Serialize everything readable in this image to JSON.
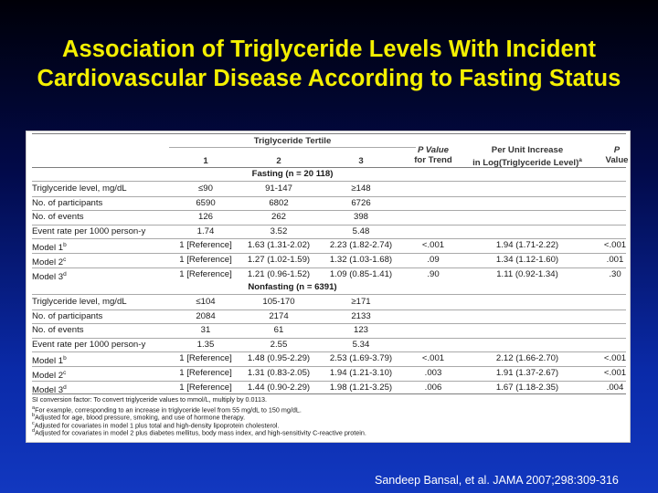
{
  "title": {
    "line1": "Association of Triglyceride Levels With Incident",
    "line2": "Cardiovascular Disease According to Fasting Status"
  },
  "table": {
    "tertile_header": "Triglyceride Tertile",
    "col_1": "1",
    "col_2": "2",
    "col_3": "3",
    "pvalue_trend_line1": "P Value",
    "pvalue_trend_line2": "for Trend",
    "per_unit_line1": "Per Unit Increase",
    "per_unit_line2": "in Log(Triglyceride Level)",
    "per_unit_sup": "a",
    "p_value_line1": "P",
    "p_value_line2": "Value",
    "fasting_section": "Fasting (n = 20 118)",
    "nonfasting_section": "Nonfasting (n = 6391)",
    "fasting_rows": [
      {
        "label": "Triglyceride level, mg/dL",
        "sup": "",
        "t1": "≤90",
        "t2": "91-147",
        "t3": "≥148",
        "p_trend": "",
        "per_unit": "",
        "p": ""
      },
      {
        "label": "No. of participants",
        "sup": "",
        "t1": "6590",
        "t2": "6802",
        "t3": "6726",
        "p_trend": "",
        "per_unit": "",
        "p": ""
      },
      {
        "label": "No. of events",
        "sup": "",
        "t1": "126",
        "t2": "262",
        "t3": "398",
        "p_trend": "",
        "per_unit": "",
        "p": ""
      },
      {
        "label": "Event rate per 1000 person-y",
        "sup": "",
        "t1": "1.74",
        "t2": "3.52",
        "t3": "5.48",
        "p_trend": "",
        "per_unit": "",
        "p": ""
      },
      {
        "label": "Model 1",
        "sup": "b",
        "t1": "1 [Reference]",
        "t2": "1.63 (1.31-2.02)",
        "t3": "2.23 (1.82-2.74)",
        "p_trend": "<.001",
        "per_unit": "1.94 (1.71-2.22)",
        "p": "<.001"
      },
      {
        "label": "Model 2",
        "sup": "c",
        "t1": "1 [Reference]",
        "t2": "1.27 (1.02-1.59)",
        "t3": "1.32 (1.03-1.68)",
        "p_trend": ".09",
        "per_unit": "1.34 (1.12-1.60)",
        "p": ".001"
      },
      {
        "label": "Model 3",
        "sup": "d",
        "t1": "1 [Reference]",
        "t2": "1.21 (0.96-1.52)",
        "t3": "1.09 (0.85-1.41)",
        "p_trend": ".90",
        "per_unit": "1.11 (0.92-1.34)",
        "p": ".30"
      }
    ],
    "nonfasting_rows": [
      {
        "label": "Triglyceride level, mg/dL",
        "sup": "",
        "t1": "≤104",
        "t2": "105-170",
        "t3": "≥171",
        "p_trend": "",
        "per_unit": "",
        "p": ""
      },
      {
        "label": "No. of participants",
        "sup": "",
        "t1": "2084",
        "t2": "2174",
        "t3": "2133",
        "p_trend": "",
        "per_unit": "",
        "p": ""
      },
      {
        "label": "No. of events",
        "sup": "",
        "t1": "31",
        "t2": "61",
        "t3": "123",
        "p_trend": "",
        "per_unit": "",
        "p": ""
      },
      {
        "label": "Event rate per 1000 person-y",
        "sup": "",
        "t1": "1.35",
        "t2": "2.55",
        "t3": "5.34",
        "p_trend": "",
        "per_unit": "",
        "p": ""
      },
      {
        "label": "Model 1",
        "sup": "b",
        "t1": "1 [Reference]",
        "t2": "1.48 (0.95-2.29)",
        "t3": "2.53 (1.69-3.79)",
        "p_trend": "<.001",
        "per_unit": "2.12 (1.66-2.70)",
        "p": "<.001"
      },
      {
        "label": "Model 2",
        "sup": "c",
        "t1": "1 [Reference]",
        "t2": "1.31 (0.83-2.05)",
        "t3": "1.94 (1.21-3.10)",
        "p_trend": ".003",
        "per_unit": "1.91 (1.37-2.67)",
        "p": "<.001"
      },
      {
        "label": "Model 3",
        "sup": "d",
        "t1": "1 [Reference]",
        "t2": "1.44 (0.90-2.29)",
        "t3": "1.98 (1.21-3.25)",
        "p_trend": ".006",
        "per_unit": "1.67 (1.18-2.35)",
        "p": ".004"
      }
    ],
    "footnotes": [
      {
        "sup": "",
        "text": "SI conversion factor: To convert triglyceride values to mmol/L, multiply by 0.0113."
      },
      {
        "sup": "a",
        "text": "For example, corresponding to an increase in triglyceride level from 55 mg/dL to 150 mg/dL."
      },
      {
        "sup": "b",
        "text": "Adjusted for age, blood pressure, smoking, and use of hormone therapy."
      },
      {
        "sup": "c",
        "text": "Adjusted for covariates in model 1 plus total and high-density lipoprotein cholesterol."
      },
      {
        "sup": "d",
        "text": "Adjusted for covariates in model 2 plus diabetes mellitus, body mass index, and high-sensitivity C-reactive protein."
      }
    ]
  },
  "citation": "Sandeep Bansal, et al. JAMA 2007;298:309-316"
}
